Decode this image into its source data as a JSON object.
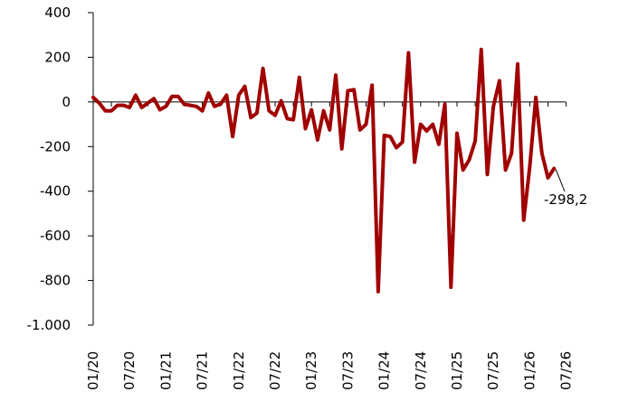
{
  "chart_data": {
    "type": "line",
    "title": "",
    "xlabel": "",
    "ylabel": "",
    "ylim": [
      -1000,
      400
    ],
    "y_ticks": [
      400,
      200,
      0,
      -200,
      -400,
      -600,
      -800,
      -1000
    ],
    "y_tick_labels": [
      "400",
      "200",
      "0",
      "-200",
      "-400",
      "-600",
      "-800",
      "-1.000"
    ],
    "x_tick_labels": [
      "01/20",
      "07/20",
      "01/21",
      "07/21",
      "01/22",
      "07/22",
      "01/23",
      "07/23",
      "01/24",
      "07/24",
      "01/25",
      "07/25",
      "01/26",
      "07/26"
    ],
    "x_start": "01/20",
    "frequency": "monthly",
    "grid": false,
    "legend": "none",
    "line_color": "#A00000",
    "end_label": "-298,2",
    "series": [
      {
        "values": [
          20,
          -5,
          -40,
          -40,
          -15,
          -15,
          -25,
          30,
          -25,
          -5,
          15,
          -35,
          -20,
          25,
          25,
          -10,
          -15,
          -20,
          -40,
          40,
          -20,
          -10,
          30,
          -155,
          30,
          70,
          -70,
          -50,
          150,
          -40,
          -60,
          5,
          -75,
          -80,
          110,
          -120,
          -35,
          -170,
          -40,
          -125,
          120,
          -210,
          50,
          55,
          -125,
          -100,
          75,
          -850,
          -150,
          -155,
          -205,
          -180,
          220,
          -270,
          -100,
          -130,
          -100,
          -190,
          -10,
          -830,
          -140,
          -305,
          -260,
          -175,
          235,
          -325,
          -20,
          95,
          -305,
          -230,
          170,
          -530,
          -290,
          20,
          -230,
          -340,
          -298.2
        ]
      }
    ]
  }
}
